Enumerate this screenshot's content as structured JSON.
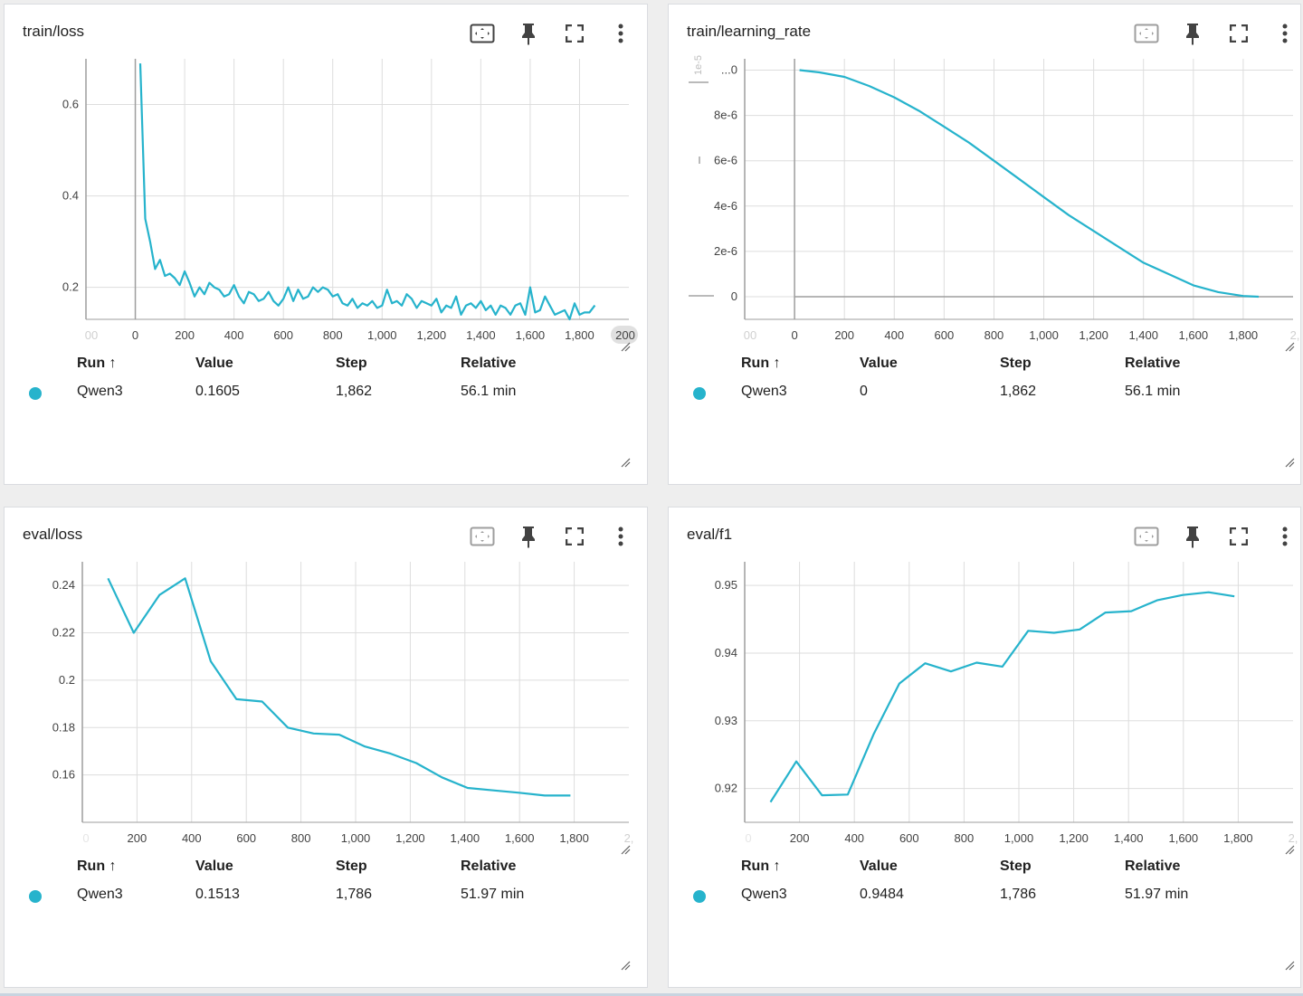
{
  "colors": {
    "series": "#26b3cc",
    "grid": "#dddddd",
    "axis": "#9e9e9e",
    "text": "#212121"
  },
  "icons": [
    "fit-domain-icon",
    "pin-icon",
    "fullscreen-icon",
    "more-vert-icon",
    "resize-handle-icon"
  ],
  "cards": [
    {
      "title": "train/loss",
      "table": {
        "headers": [
          "Run ↑",
          "Value",
          "Step",
          "Relative"
        ],
        "row": [
          "Qwen3",
          "0.1605",
          "1,862",
          "56.1 min"
        ]
      }
    },
    {
      "title": "train/learning_rate",
      "table": {
        "headers": [
          "Run ↑",
          "Value",
          "Step",
          "Relative"
        ],
        "row": [
          "Qwen3",
          "0",
          "1,862",
          "56.1 min"
        ]
      }
    },
    {
      "title": "eval/loss",
      "table": {
        "headers": [
          "Run ↑",
          "Value",
          "Step",
          "Relative"
        ],
        "row": [
          "Qwen3",
          "0.1513",
          "1,786",
          "51.97 min"
        ]
      }
    },
    {
      "title": "eval/f1",
      "table": {
        "headers": [
          "Run ↑",
          "Value",
          "Step",
          "Relative"
        ],
        "row": [
          "Qwen3",
          "0.9484",
          "1,786",
          "51.97 min"
        ]
      }
    }
  ],
  "chart_data": [
    {
      "type": "line",
      "title": "train/loss",
      "xlabel": "",
      "ylabel": "",
      "xlim": [
        -200,
        2000
      ],
      "ylim": [
        0.13,
        0.7
      ],
      "xticks": [
        0,
        200,
        400,
        600,
        800,
        1000,
        1200,
        1400,
        1600,
        1800
      ],
      "xtick_labels": [
        "0",
        "200",
        "400",
        "600",
        "800",
        "1,000",
        "1,200",
        "1,400",
        "1,600",
        "1,800"
      ],
      "xtick_edge_labels": [
        "00",
        "200"
      ],
      "yticks": [
        0.2,
        0.4,
        0.6
      ],
      "ytick_labels": [
        "0.2",
        "0.4",
        "0.6"
      ],
      "series": [
        {
          "name": "Qwen3",
          "x": [
            20,
            40,
            60,
            80,
            100,
            120,
            140,
            160,
            180,
            200,
            220,
            240,
            260,
            280,
            300,
            320,
            340,
            360,
            380,
            400,
            420,
            440,
            460,
            480,
            500,
            520,
            540,
            560,
            580,
            600,
            620,
            640,
            660,
            680,
            700,
            720,
            740,
            760,
            780,
            800,
            820,
            840,
            860,
            880,
            900,
            920,
            940,
            960,
            980,
            1000,
            1020,
            1040,
            1060,
            1080,
            1100,
            1120,
            1140,
            1160,
            1180,
            1200,
            1220,
            1240,
            1260,
            1280,
            1300,
            1320,
            1340,
            1360,
            1380,
            1400,
            1420,
            1440,
            1460,
            1480,
            1500,
            1520,
            1540,
            1560,
            1580,
            1600,
            1620,
            1640,
            1660,
            1680,
            1700,
            1720,
            1740,
            1760,
            1780,
            1800,
            1820,
            1840,
            1862
          ],
          "values": [
            0.69,
            0.35,
            0.3,
            0.24,
            0.26,
            0.225,
            0.23,
            0.22,
            0.205,
            0.235,
            0.21,
            0.18,
            0.2,
            0.185,
            0.21,
            0.2,
            0.195,
            0.18,
            0.185,
            0.205,
            0.18,
            0.165,
            0.19,
            0.185,
            0.17,
            0.175,
            0.19,
            0.17,
            0.16,
            0.175,
            0.2,
            0.17,
            0.195,
            0.175,
            0.18,
            0.2,
            0.19,
            0.2,
            0.195,
            0.18,
            0.185,
            0.165,
            0.16,
            0.175,
            0.155,
            0.165,
            0.16,
            0.17,
            0.155,
            0.16,
            0.195,
            0.165,
            0.17,
            0.16,
            0.185,
            0.175,
            0.155,
            0.17,
            0.165,
            0.16,
            0.175,
            0.145,
            0.16,
            0.155,
            0.18,
            0.14,
            0.16,
            0.165,
            0.155,
            0.17,
            0.15,
            0.16,
            0.14,
            0.16,
            0.155,
            0.14,
            0.16,
            0.165,
            0.14,
            0.2,
            0.145,
            0.15,
            0.18,
            0.16,
            0.14,
            0.145,
            0.15,
            0.13,
            0.165,
            0.14,
            0.145,
            0.145,
            0.1605
          ]
        }
      ]
    },
    {
      "type": "line",
      "title": "train/learning_rate",
      "xlabel": "",
      "ylabel": "",
      "xlim": [
        -200,
        2000
      ],
      "ylim": [
        -1e-06,
        1.05e-05
      ],
      "xticks": [
        0,
        200,
        400,
        600,
        800,
        1000,
        1200,
        1400,
        1600,
        1800
      ],
      "xtick_labels": [
        "0",
        "200",
        "400",
        "600",
        "800",
        "1,000",
        "1,200",
        "1,400",
        "1,600",
        "1,800"
      ],
      "xtick_edge_labels": [
        "00",
        "2,"
      ],
      "yticks": [
        0,
        2e-06,
        4e-06,
        6e-06,
        8e-06,
        1e-05
      ],
      "ytick_labels": [
        "0",
        "2e-6",
        "4e-6",
        "6e-6",
        "8e-6",
        "...0"
      ],
      "axis_label_fragment": "1e-5",
      "series": [
        {
          "name": "Qwen3",
          "x": [
            20,
            100,
            200,
            300,
            400,
            500,
            600,
            700,
            800,
            900,
            1000,
            1100,
            1200,
            1300,
            1400,
            1500,
            1600,
            1700,
            1800,
            1862
          ],
          "values": [
            1e-05,
            9.9e-06,
            9.7e-06,
            9.3e-06,
            8.8e-06,
            8.2e-06,
            7.5e-06,
            6.8e-06,
            6e-06,
            5.2e-06,
            4.4e-06,
            3.6e-06,
            2.9e-06,
            2.2e-06,
            1.5e-06,
            1e-06,
            5e-07,
            2e-07,
            3e-08,
            0.0
          ]
        }
      ]
    },
    {
      "type": "line",
      "title": "eval/loss",
      "xlabel": "",
      "ylabel": "",
      "xlim": [
        0,
        2000
      ],
      "ylim": [
        0.14,
        0.25
      ],
      "xticks": [
        200,
        400,
        600,
        800,
        1000,
        1200,
        1400,
        1600,
        1800
      ],
      "xtick_labels": [
        "200",
        "400",
        "600",
        "800",
        "1,000",
        "1,200",
        "1,400",
        "1,600",
        "1,800"
      ],
      "xtick_edge_labels": [
        "2,"
      ],
      "yticks": [
        0.16,
        0.18,
        0.2,
        0.22,
        0.24
      ],
      "ytick_labels": [
        "0.16",
        "0.18",
        "0.2",
        "0.22",
        "0.24"
      ],
      "series": [
        {
          "name": "Qwen3",
          "x": [
            94,
            188,
            282,
            376,
            470,
            564,
            658,
            752,
            846,
            940,
            1034,
            1128,
            1222,
            1316,
            1410,
            1504,
            1598,
            1692,
            1786
          ],
          "values": [
            0.243,
            0.22,
            0.236,
            0.243,
            0.208,
            0.192,
            0.191,
            0.18,
            0.1775,
            0.177,
            0.172,
            0.169,
            0.165,
            0.159,
            0.1545,
            0.1535,
            0.1525,
            0.1513,
            0.1513
          ]
        }
      ]
    },
    {
      "type": "line",
      "title": "eval/f1",
      "xlabel": "",
      "ylabel": "",
      "xlim": [
        0,
        2000
      ],
      "ylim": [
        0.915,
        0.9535
      ],
      "xticks": [
        200,
        400,
        600,
        800,
        1000,
        1200,
        1400,
        1600,
        1800
      ],
      "xtick_labels": [
        "200",
        "400",
        "600",
        "800",
        "1,000",
        "1,200",
        "1,400",
        "1,600",
        "1,800"
      ],
      "xtick_edge_labels": [
        "2,"
      ],
      "yticks": [
        0.92,
        0.93,
        0.94,
        0.95
      ],
      "ytick_labels": [
        "0.92",
        "0.93",
        "0.94",
        "0.95"
      ],
      "series": [
        {
          "name": "Qwen3",
          "x": [
            94,
            188,
            282,
            376,
            470,
            564,
            658,
            752,
            846,
            940,
            1034,
            1128,
            1222,
            1316,
            1410,
            1504,
            1598,
            1692,
            1786
          ],
          "values": [
            0.918,
            0.924,
            0.919,
            0.9191,
            0.928,
            0.9355,
            0.9385,
            0.9373,
            0.9386,
            0.938,
            0.9433,
            0.943,
            0.9435,
            0.946,
            0.9462,
            0.9478,
            0.9486,
            0.949,
            0.9484
          ]
        }
      ]
    }
  ]
}
